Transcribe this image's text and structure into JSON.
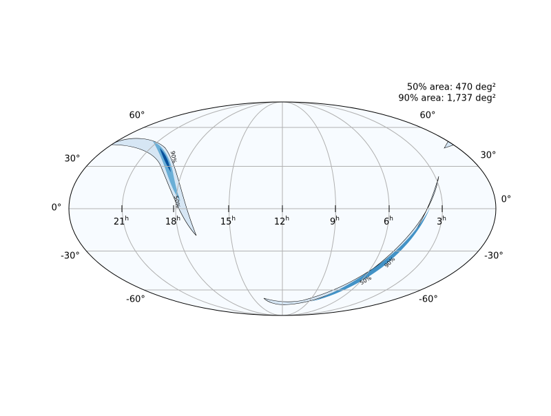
{
  "annotation": [
    "50% area: 470 deg²",
    "90% area: 1,737 deg²"
  ],
  "lat_labels_left": [
    "60°",
    "30°",
    "0°",
    "-30°",
    "-60°"
  ],
  "lat_labels_right": [
    "60°",
    "30°",
    "0°",
    "-30°",
    "-60°"
  ],
  "ra_labels": [
    {
      "number": "21",
      "suffix": "h"
    },
    {
      "number": "18",
      "suffix": "h"
    },
    {
      "number": "15",
      "suffix": "h"
    },
    {
      "number": "12",
      "suffix": "h"
    },
    {
      "number": "9",
      "suffix": "h"
    },
    {
      "number": "6",
      "suffix": "h"
    },
    {
      "number": "3",
      "suffix": "h"
    }
  ],
  "contour_labels": [
    "90%",
    "50%",
    "50%",
    "90%"
  ]
}
